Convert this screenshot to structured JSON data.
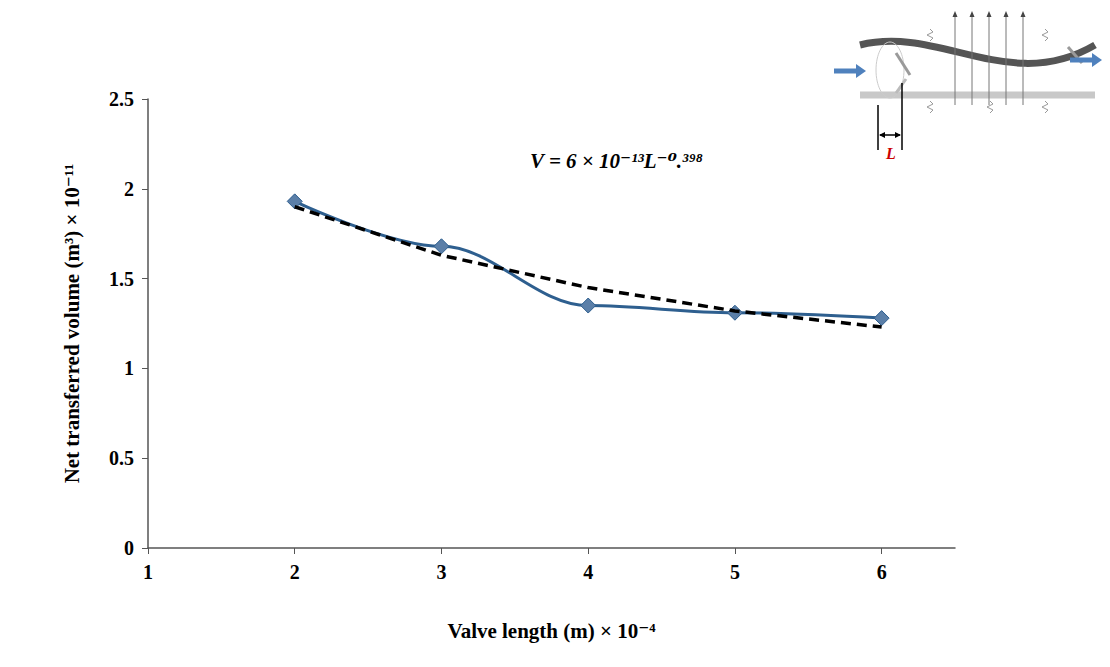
{
  "chart_data": {
    "type": "line",
    "x_label": "Valve length (m) × 10⁻⁴",
    "y_label": "Net transferred volume (m³) × 10⁻¹¹",
    "x": [
      2,
      3,
      4,
      5,
      6
    ],
    "series": [
      {
        "type": "line",
        "color": "#2e5f8f",
        "marker": "diamond",
        "line_style": "solid",
        "values": [
          1.93,
          1.68,
          1.35,
          1.31,
          1.28
        ]
      },
      {
        "type": "line",
        "color": "#000000",
        "marker": "none",
        "line_style": "dashed",
        "values": [
          1.9,
          1.63,
          1.45,
          1.32,
          1.23
        ]
      }
    ],
    "xlim": [
      1,
      6.5
    ],
    "xticks": [
      1,
      2,
      3,
      4,
      5,
      6
    ],
    "ylim": [
      0,
      2.5
    ],
    "yticks": [
      0,
      0.5,
      1,
      1.5,
      2,
      2.5
    ],
    "grid": false,
    "annotations": [
      {
        "text": "V = 6 × 10⁻¹³L⁻⁰.³⁹⁸"
      },
      {
        "text": "L"
      }
    ]
  }
}
